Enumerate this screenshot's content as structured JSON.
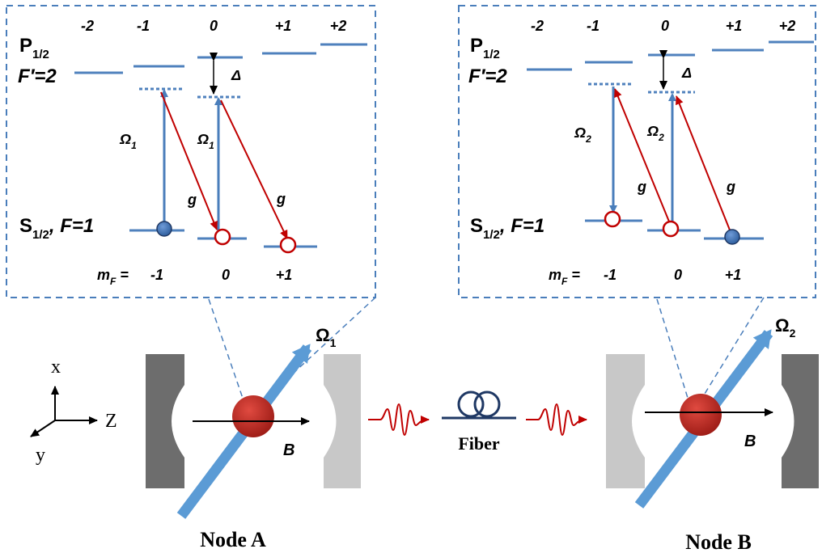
{
  "colors": {
    "level": "#4f81bd",
    "pump": "#4a7ebb",
    "cavity_photon": "#c00000",
    "atom": "#c0302a",
    "dash": "#4a7ebb",
    "mirror_dark": "#6d6d6d",
    "mirror_light": "#c8c8c8",
    "fiber": "#1f3864",
    "occupied_state": "#4f81bd"
  },
  "panel_a": {
    "mf_top": [
      "-2",
      "-1",
      "0",
      "+1",
      "+2"
    ],
    "excited_label_main": "P",
    "excited_label_sub": "1/2",
    "excited_f": "F′=2",
    "detuning": "Δ",
    "omega_main": "Ω",
    "omega_sub": "1",
    "coupling": "g",
    "ground_label_main": "S",
    "ground_label_sub": "1/2",
    "ground_f": ", F=1",
    "mf_prefix_main": "m",
    "mf_prefix_sub": "F",
    "mf_prefix_rest": " = ",
    "mf_bottom": [
      "-1",
      "0",
      "+1"
    ]
  },
  "panel_b": {
    "mf_top": [
      "-2",
      "-1",
      "0",
      "+1",
      "+2"
    ],
    "excited_label_main": "P",
    "excited_label_sub": "1/2",
    "excited_f": "F′=2",
    "detuning": "Δ",
    "omega_main": "Ω",
    "omega_sub": "2",
    "coupling": "g",
    "ground_label_main": "S",
    "ground_label_sub": "1/2",
    "ground_f": ", F=1",
    "mf_prefix_main": "m",
    "mf_prefix_sub": "F",
    "mf_prefix_rest": " = ",
    "mf_bottom": [
      "-1",
      "0",
      "+1"
    ]
  },
  "axes": {
    "x": "x",
    "y": "y",
    "z": "z"
  },
  "node_a": {
    "label": "Node A",
    "field": "B",
    "beam_main": "Ω",
    "beam_sub": "1"
  },
  "node_b": {
    "label": "Node B",
    "field": "B",
    "beam_main": "Ω",
    "beam_sub": "2"
  },
  "fiber_label": "Fiber"
}
